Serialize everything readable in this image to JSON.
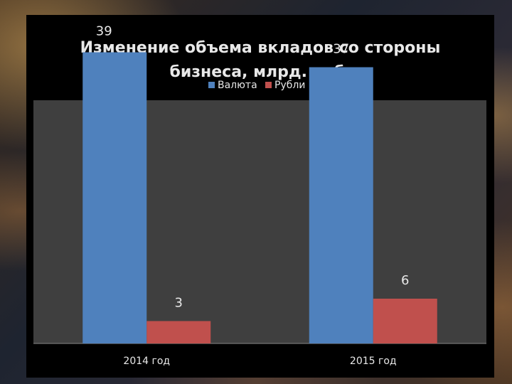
{
  "chart_data": {
    "type": "bar",
    "title_lines": [
      "Изменение объема вкладов со стороны",
      "бизнеса, млрд. руб."
    ],
    "categories": [
      "2014 год",
      "2015 год"
    ],
    "series": [
      {
        "name": "Валюта",
        "values": [
          39,
          37
        ],
        "color": "#4f81bd"
      },
      {
        "name": "Рубли",
        "values": [
          3,
          6
        ],
        "color": "#c0504d"
      }
    ],
    "ylim": [
      0,
      40
    ],
    "grid": false,
    "legend_position": "top-center",
    "data_labels": true
  },
  "colors": {
    "plot_area": "#3f3f3f",
    "panel": "#000000",
    "text": "#e8e8e8",
    "axis_line": "#888888"
  }
}
